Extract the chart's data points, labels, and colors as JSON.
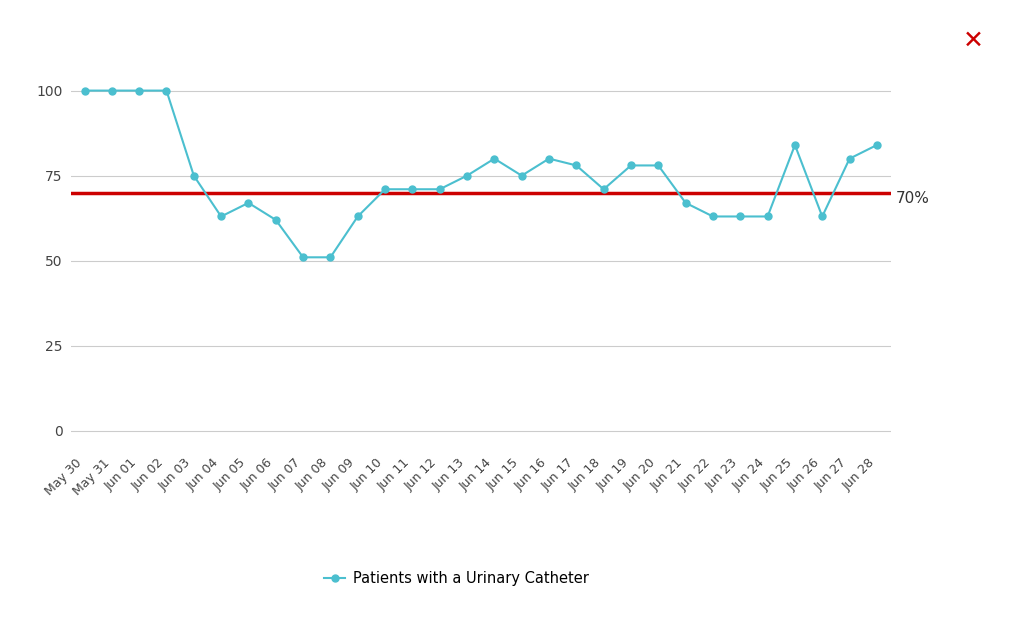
{
  "x_labels": [
    "May 30",
    "May 31",
    "Jun 01",
    "Jun 02",
    "Jun 03",
    "Jun 04",
    "Jun 05",
    "Jun 06",
    "Jun 07",
    "Jun 08",
    "Jun 09",
    "Jun 10",
    "Jun 11",
    "Jun 12",
    "Jun 13",
    "Jun 14",
    "Jun 15",
    "Jun 16",
    "Jun 17",
    "Jun 18",
    "Jun 19",
    "Jun 20",
    "Jun 21",
    "Jun 22",
    "Jun 23",
    "Jun 24",
    "Jun 25",
    "Jun 26",
    "Jun 27",
    "Jun 28"
  ],
  "values": [
    100,
    100,
    100,
    100,
    75,
    63,
    67,
    62,
    51,
    51,
    63,
    71,
    71,
    71,
    75,
    80,
    75,
    80,
    78,
    71,
    78,
    78,
    67,
    63,
    63,
    63,
    84,
    63,
    80,
    84
  ],
  "reference_line": 70,
  "reference_label": "70%",
  "line_color": "#4bbfcf",
  "marker_color": "#4bbfcf",
  "ref_line_color": "#cc0000",
  "background_color": "#ffffff",
  "grid_color": "#cccccc",
  "legend_label": "Patients with a Urinary Catheter",
  "yticks": [
    0,
    25,
    50,
    75,
    100
  ],
  "ylim": [
    -5,
    112
  ],
  "x_symbol_color": "#cc0000",
  "marker_size": 5,
  "line_width": 1.5
}
